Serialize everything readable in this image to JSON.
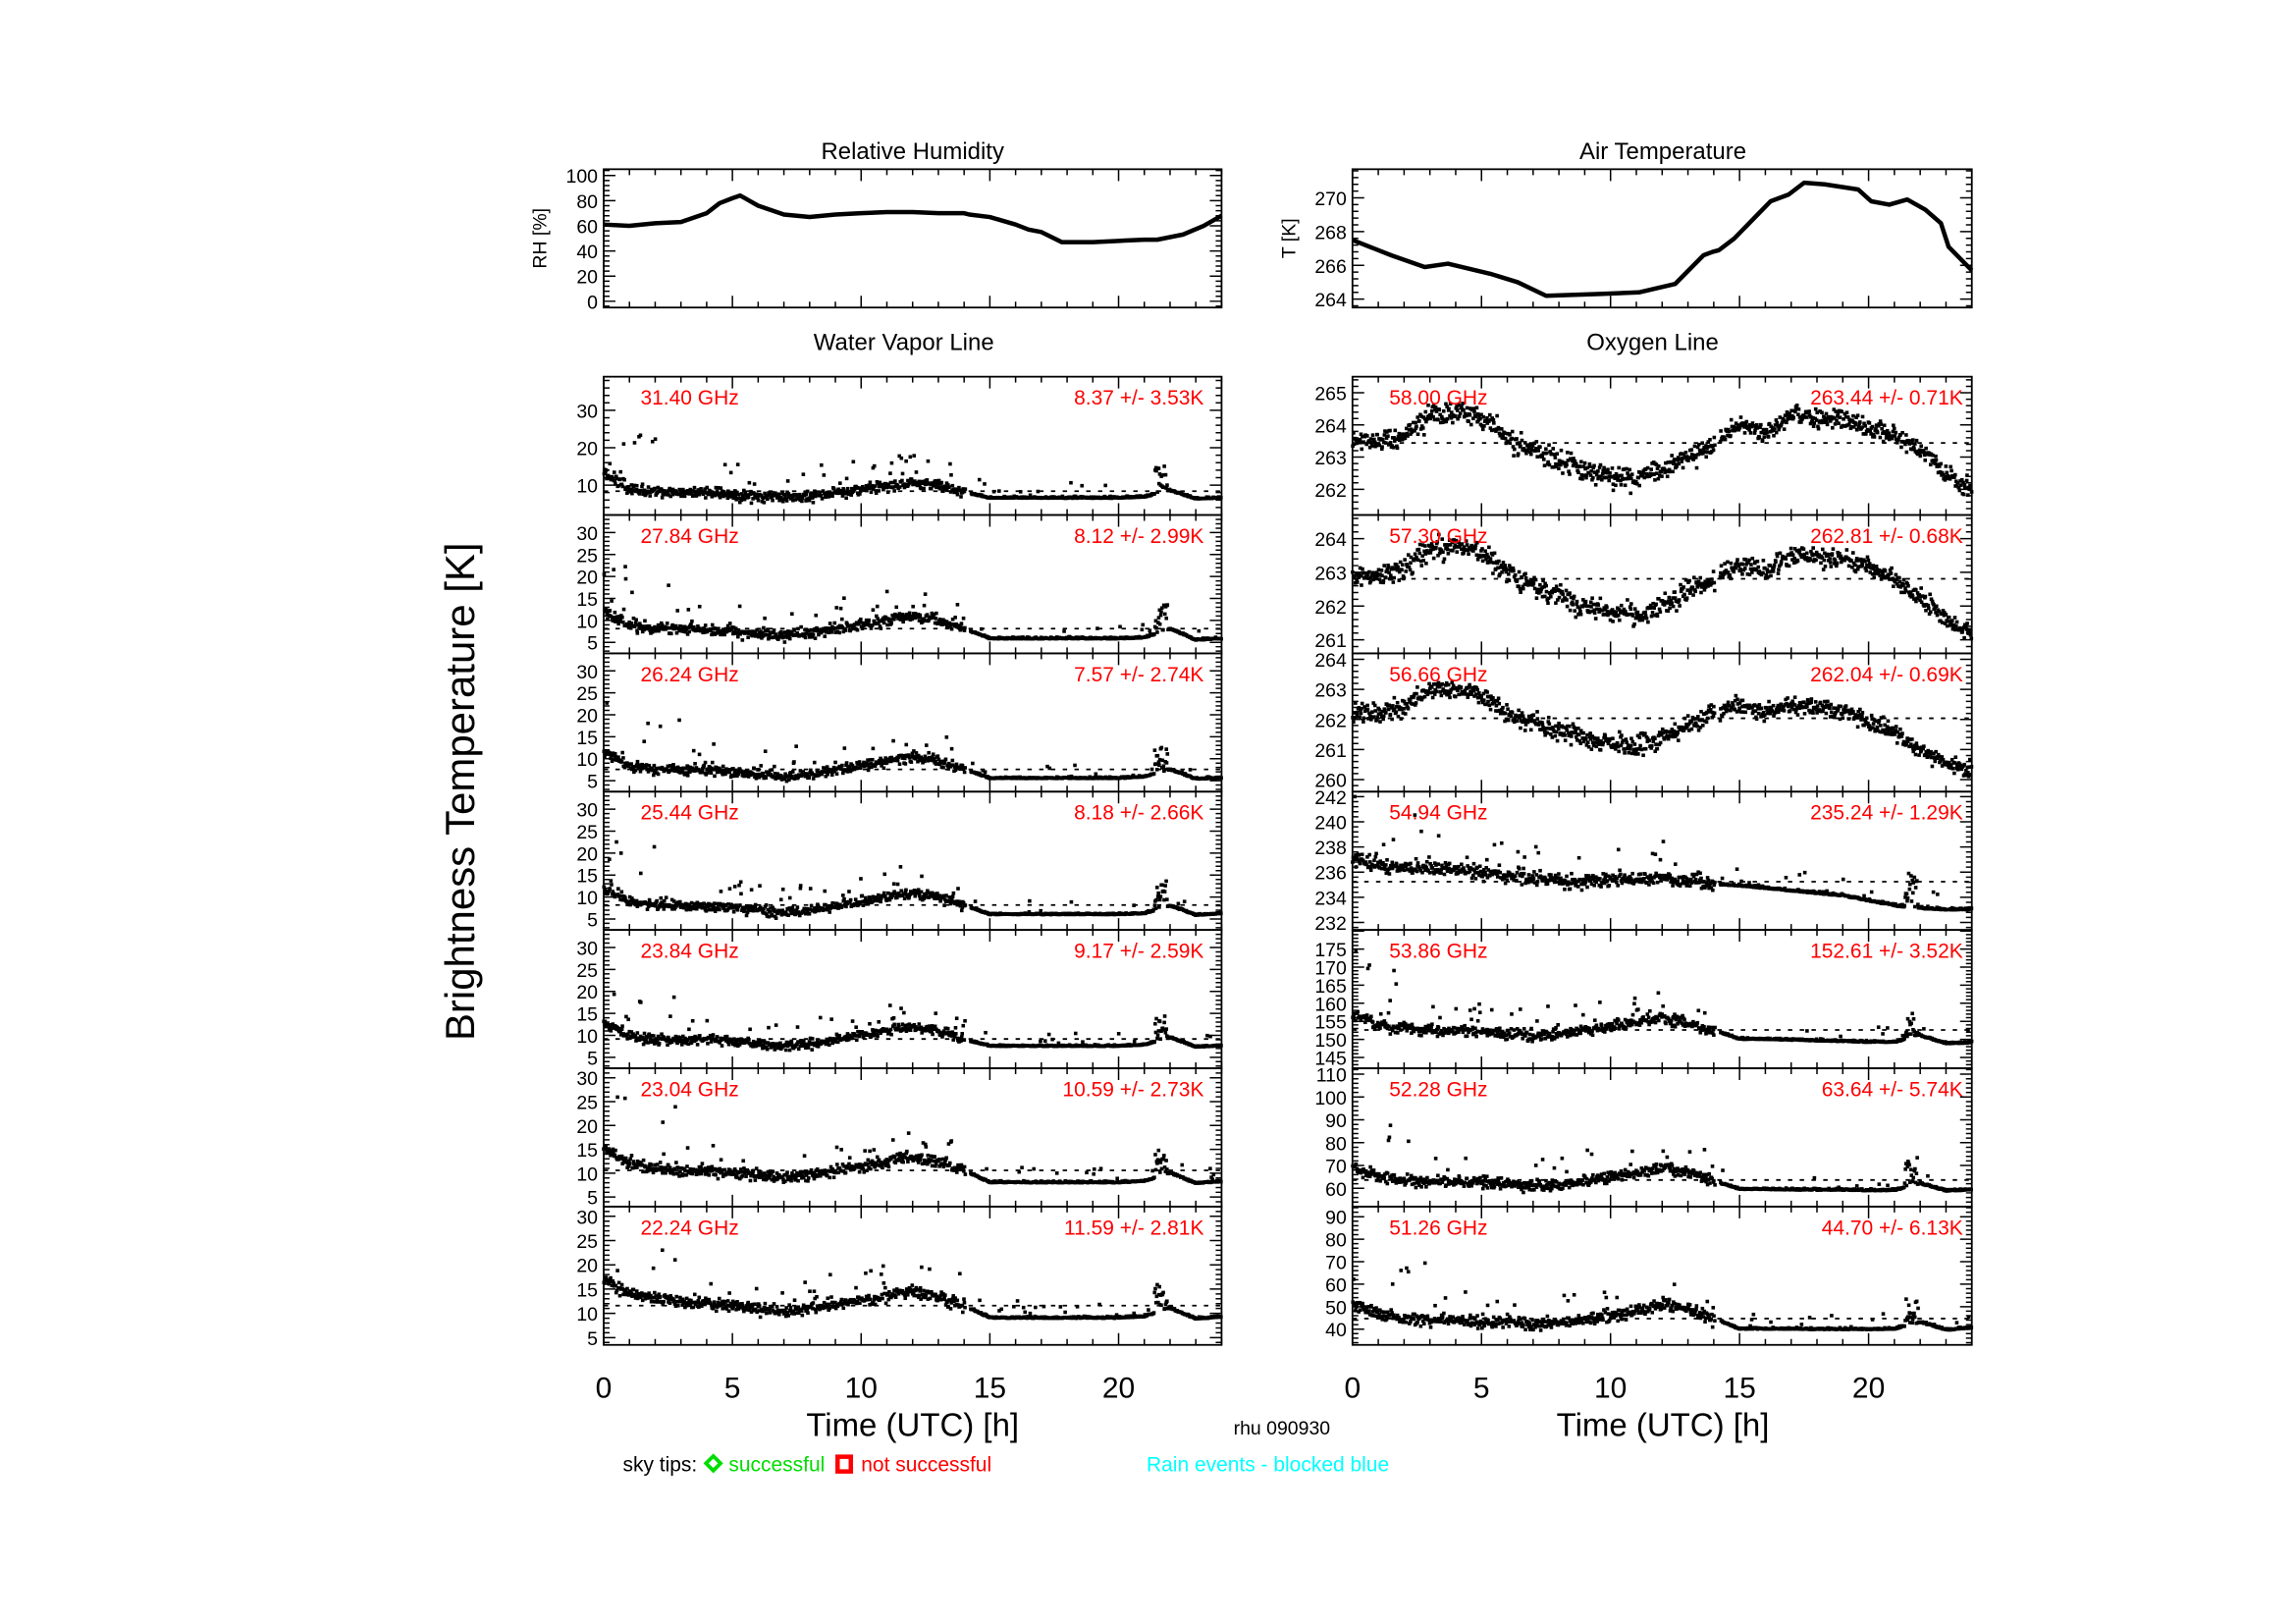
{
  "figure": {
    "ylabel": "Brightness Temperature [K]",
    "xlabel": "Time (UTC) [h]",
    "xticks": [
      0,
      5,
      10,
      15,
      20
    ],
    "xlim": [
      0,
      24
    ],
    "station": "rhu 090930",
    "legend": {
      "label": "sky tips:",
      "successful": "successful",
      "not_successful": "not successful",
      "rain": "Rain events - blocked blue"
    },
    "colors": {
      "data": "#000000",
      "annotation": "#ff0000",
      "successful": "#00dd00",
      "not_successful": "#ff0000",
      "rain": "#00ffff"
    }
  },
  "chart_data": [
    {
      "type": "line",
      "title": "Relative Humidity",
      "ylabel": "RH [%]",
      "ylim": [
        -5,
        105
      ],
      "yticks": [
        0,
        20,
        40,
        60,
        80,
        100
      ],
      "xlim": [
        0,
        24
      ],
      "x": [
        0,
        1,
        2,
        3,
        4,
        4.5,
        5,
        5.3,
        6,
        7,
        8,
        9,
        10,
        11,
        12,
        13,
        14,
        14.2,
        15,
        16,
        16.5,
        17,
        17.8,
        19,
        20,
        21,
        21.5,
        22.5,
        23.3,
        24
      ],
      "y": [
        61,
        60,
        62,
        63,
        70,
        78,
        82,
        84,
        76,
        69,
        67,
        69,
        70,
        71,
        71,
        70,
        70,
        69,
        67,
        61,
        57,
        55,
        47,
        47,
        48,
        49,
        49,
        53,
        60,
        68
      ]
    },
    {
      "type": "line",
      "title": "Air Temperature",
      "ylabel": "T [K]",
      "ylim": [
        263.5,
        271.7
      ],
      "yticks": [
        264,
        266,
        268,
        270
      ],
      "xlim": [
        0,
        24
      ],
      "x": [
        0,
        1.5,
        2.8,
        3.7,
        5.35,
        6.4,
        7.5,
        9.6,
        11.1,
        12.5,
        13.6,
        13.95,
        14.2,
        14.8,
        16.2,
        16.9,
        17.5,
        18.3,
        19.6,
        20.1,
        20.8,
        21.5,
        22.2,
        22.8,
        23.1,
        24
      ],
      "y": [
        267.5,
        266.6,
        265.9,
        266.1,
        265.5,
        265.0,
        264.2,
        264.3,
        264.4,
        264.9,
        266.6,
        266.8,
        266.9,
        267.6,
        269.8,
        270.2,
        270.9,
        270.8,
        270.5,
        269.8,
        269.6,
        269.9,
        269.3,
        268.5,
        267.1,
        265.7
      ]
    },
    {
      "type": "scatter",
      "title": "Water Vapor Line",
      "xlabel": "Time (UTC) [h]",
      "xlim": [
        0,
        24
      ],
      "x_hours": [
        0,
        1,
        2,
        3,
        4,
        5,
        6,
        7,
        8,
        9,
        10,
        11,
        12,
        13,
        14,
        15,
        16,
        17,
        18,
        19,
        20,
        21,
        22,
        23,
        24
      ],
      "panels": [
        {
          "frequency": "31.40 GHz",
          "stats": "8.37 +/-  3.53K",
          "mean": 8.37,
          "std": 3.53,
          "ylim": [
            2,
            39
          ],
          "yticks": [
            10,
            20,
            30
          ],
          "tb": [
            13,
            9,
            8,
            8,
            8,
            7.5,
            7,
            6.8,
            7,
            8,
            8.5,
            9.5,
            10.5,
            10,
            8,
            6.5,
            6.5,
            6.5,
            6.5,
            6.5,
            6.5,
            6.8,
            8.5,
            6.3,
            6.5
          ]
        },
        {
          "frequency": "27.84 GHz",
          "stats": "8.12 +/-  2.99K",
          "mean": 8.12,
          "std": 2.99,
          "ylim": [
            2.5,
            34
          ],
          "yticks": [
            5,
            10,
            15,
            20,
            25,
            30
          ],
          "tb": [
            12,
            9,
            8,
            8,
            8,
            7.5,
            7,
            6.5,
            7,
            8,
            9,
            10,
            11,
            10,
            8,
            5.8,
            5.8,
            5.8,
            5.8,
            5.8,
            5.8,
            6,
            8,
            5.5,
            5.8
          ]
        },
        {
          "frequency": "26.24 GHz",
          "stats": "7.57 +/-  2.74K",
          "mean": 7.57,
          "std": 2.74,
          "ylim": [
            2.5,
            34
          ],
          "yticks": [
            5,
            10,
            15,
            20,
            25,
            30
          ],
          "tb": [
            11.5,
            8.5,
            7.5,
            7.5,
            7.5,
            7,
            6.5,
            6,
            6.5,
            7.5,
            8.5,
            9.5,
            10.5,
            9.5,
            7.5,
            5.5,
            5.5,
            5.5,
            5.5,
            5.5,
            5.5,
            5.8,
            7.5,
            5.3,
            5.6
          ]
        },
        {
          "frequency": "25.44 GHz",
          "stats": "8.18 +/-  2.66K",
          "mean": 8.18,
          "std": 2.66,
          "ylim": [
            2.5,
            34
          ],
          "yticks": [
            5,
            10,
            15,
            20,
            25,
            30
          ],
          "tb": [
            12,
            9,
            8,
            8,
            8,
            7.5,
            7,
            6.5,
            7,
            8,
            9,
            10,
            11,
            10,
            8,
            6,
            6,
            6,
            6,
            6,
            6,
            6.2,
            8,
            5.8,
            6.2
          ]
        },
        {
          "frequency": "23.84 GHz",
          "stats": "9.17 +/-  2.59K",
          "mean": 9.17,
          "std": 2.59,
          "ylim": [
            2.5,
            34
          ],
          "yticks": [
            5,
            10,
            15,
            20,
            25,
            30
          ],
          "tb": [
            13,
            10,
            9,
            9,
            9,
            8.5,
            8,
            7.5,
            8,
            9,
            10,
            11,
            12,
            11,
            9,
            7.5,
            7.5,
            7.5,
            7.5,
            7.5,
            7.5,
            7.8,
            9.5,
            7.3,
            7.6
          ]
        },
        {
          "frequency": "23.04 GHz",
          "stats": "10.59 +/-  2.73K",
          "mean": 10.59,
          "std": 2.73,
          "ylim": [
            3,
            32
          ],
          "yticks": [
            5,
            10,
            15,
            20,
            25,
            30
          ],
          "tb": [
            15.5,
            12,
            11,
            10.5,
            10.5,
            10,
            9.5,
            9,
            9.5,
            10.5,
            11.5,
            12.5,
            13.5,
            12.5,
            10.5,
            8,
            8,
            8,
            8,
            8,
            8,
            8.3,
            10,
            7.8,
            8.2
          ]
        },
        {
          "frequency": "22.24 GHz",
          "stats": "11.59 +/-  2.81K",
          "mean": 11.59,
          "std": 2.81,
          "ylim": [
            3.5,
            32
          ],
          "yticks": [
            5,
            10,
            15,
            20,
            25,
            30
          ],
          "tb": [
            17,
            14,
            13,
            12.5,
            12,
            11.5,
            11,
            10.5,
            11,
            11.5,
            12.5,
            13.5,
            14.5,
            13.5,
            11.5,
            9,
            9,
            9,
            9,
            9,
            9,
            9.3,
            11,
            8.8,
            9.2
          ]
        }
      ]
    },
    {
      "type": "scatter",
      "title": "Oxygen Line",
      "xlabel": "Time (UTC) [h]",
      "xlim": [
        0,
        24
      ],
      "x_hours": [
        0,
        1,
        2,
        3,
        4,
        5,
        6,
        7,
        8,
        9,
        10,
        11,
        12,
        13,
        14,
        15,
        16,
        17,
        18,
        19,
        20,
        21,
        22,
        23,
        24
      ],
      "panels": [
        {
          "frequency": "58.00 GHz",
          "stats": "263.44 +/-  0.71K",
          "mean": 263.44,
          "std": 0.71,
          "ylim": [
            261.2,
            265.5
          ],
          "yticks": [
            262,
            263,
            264,
            265
          ],
          "tb": [
            263.6,
            263.5,
            263.7,
            264.3,
            264.4,
            264.2,
            263.6,
            263.2,
            262.9,
            262.6,
            262.4,
            262.3,
            262.6,
            263.0,
            263.4,
            264.0,
            263.7,
            264.3,
            264.2,
            264.2,
            263.9,
            263.7,
            263.2,
            262.5,
            261.9
          ]
        },
        {
          "frequency": "57.30 GHz",
          "stats": "262.81 +/-  0.68K",
          "mean": 262.81,
          "std": 0.68,
          "ylim": [
            260.6,
            264.7
          ],
          "yticks": [
            261,
            262,
            263,
            264
          ],
          "tb": [
            262.9,
            262.9,
            263.1,
            263.7,
            263.8,
            263.6,
            263.0,
            262.6,
            262.3,
            262.0,
            261.8,
            261.7,
            262.0,
            262.4,
            262.8,
            263.2,
            263.0,
            263.5,
            263.5,
            263.4,
            263.1,
            262.8,
            262.2,
            261.6,
            261.2
          ]
        },
        {
          "frequency": "56.66 GHz",
          "stats": "262.04 +/-  0.69K",
          "mean": 262.04,
          "std": 0.69,
          "ylim": [
            259.6,
            264.2
          ],
          "yticks": [
            260,
            261,
            262,
            263,
            264
          ],
          "tb": [
            262.2,
            262.2,
            262.4,
            263.0,
            263.0,
            262.8,
            262.2,
            261.9,
            261.6,
            261.4,
            261.2,
            261.1,
            261.4,
            261.8,
            262.2,
            262.5,
            262.2,
            262.5,
            262.4,
            262.3,
            261.9,
            261.5,
            261.0,
            260.5,
            260.3
          ]
        },
        {
          "frequency": "54.94 GHz",
          "stats": "235.24 +/-  1.29K",
          "mean": 235.24,
          "std": 1.29,
          "ylim": [
            231.4,
            242.4
          ],
          "yticks": [
            232,
            234,
            236,
            238,
            240,
            242
          ],
          "tb": [
            237,
            236.6,
            236.4,
            236.3,
            236.2,
            236,
            235.7,
            235.5,
            235.3,
            235.2,
            235.3,
            235.4,
            235.6,
            235.4,
            235,
            234.9,
            234.7,
            234.5,
            234.3,
            234.1,
            233.7,
            233.3,
            233.1,
            233.0,
            233.0
          ]
        },
        {
          "frequency": "53.86 GHz",
          "stats": "152.61 +/-  3.52K",
          "mean": 152.61,
          "std": 3.52,
          "ylim": [
            142,
            180.3
          ],
          "yticks": [
            145,
            150,
            155,
            160,
            165,
            170,
            175
          ],
          "tb": [
            157,
            154,
            153,
            152.5,
            152.5,
            152,
            151.5,
            151,
            151.5,
            152.5,
            153.5,
            154.5,
            156,
            154.5,
            152.5,
            150,
            150,
            149.8,
            149.6,
            149.4,
            149.2,
            149.2,
            151,
            148.8,
            149
          ]
        },
        {
          "frequency": "52.28 GHz",
          "stats": "63.64 +/-  5.74K",
          "mean": 63.64,
          "std": 5.74,
          "ylim": [
            52,
            112.6
          ],
          "yticks": [
            60,
            70,
            80,
            90,
            100,
            110
          ],
          "tb": [
            70,
            65,
            63.5,
            63,
            63,
            62.5,
            62,
            61,
            61.5,
            63,
            65,
            66.5,
            69,
            67,
            63,
            59.5,
            59.5,
            59.3,
            59.2,
            59.2,
            59,
            59,
            62,
            58.8,
            59.3
          ]
        },
        {
          "frequency": "51.26 GHz",
          "stats": "44.70 +/-  6.13K",
          "mean": 44.7,
          "std": 6.13,
          "ylim": [
            33,
            94.5
          ],
          "yticks": [
            40,
            50,
            60,
            70,
            80,
            90
          ],
          "tb": [
            51,
            47,
            44.5,
            44,
            44,
            43.5,
            43,
            42,
            42.5,
            44,
            46,
            48,
            51,
            49,
            44.5,
            40,
            40,
            40,
            39.8,
            39.8,
            39.8,
            40,
            43,
            39.5,
            40.5
          ]
        }
      ]
    }
  ]
}
